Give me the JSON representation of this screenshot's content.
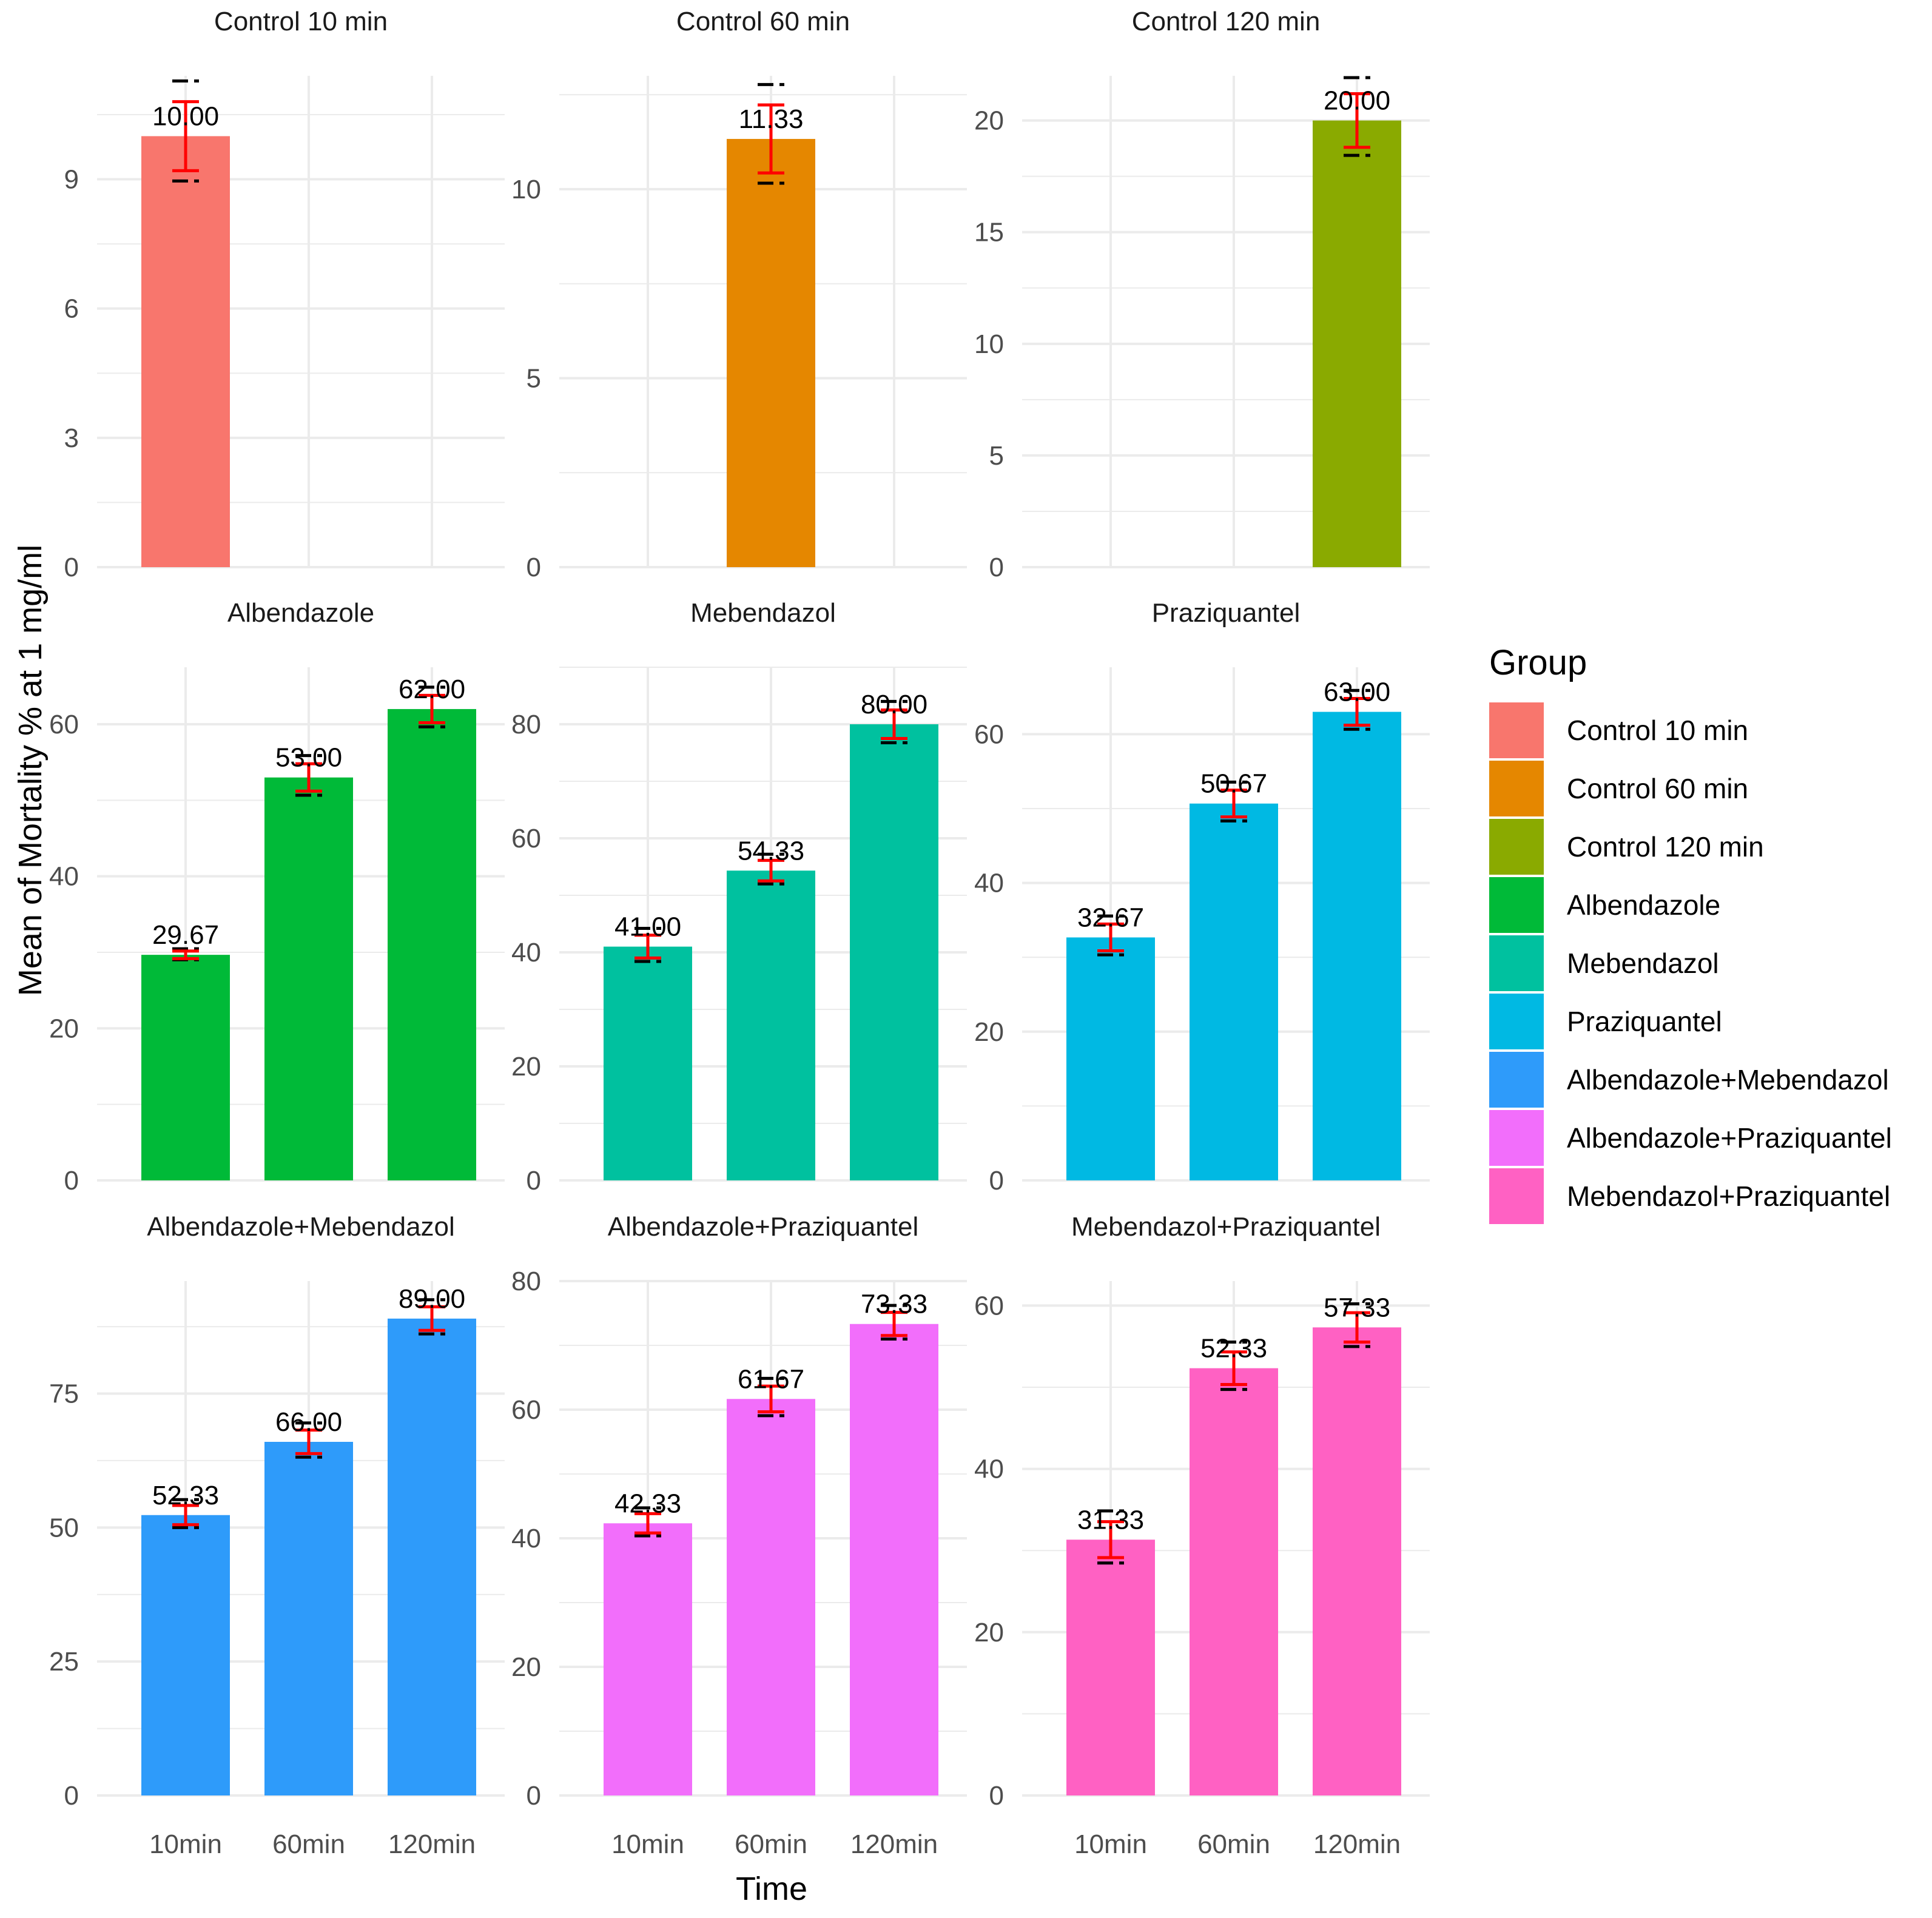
{
  "chart_data": {
    "type": "bar",
    "facet_layout": "3x3 grid, free y scales",
    "xlabel": "Time",
    "ylabel": "Mean of Mortality % at 1 mg/ml",
    "categories": [
      "10min",
      "60min",
      "120min"
    ],
    "legend": {
      "title": "Group",
      "placement": "right",
      "entries": [
        {
          "name": "Control 10 min",
          "color": "#F8766D"
        },
        {
          "name": "Control 60 min",
          "color": "#E58700"
        },
        {
          "name": "Control 120 min",
          "color": "#8AAA00"
        },
        {
          "name": "Albendazole",
          "color": "#00BA38"
        },
        {
          "name": "Mebendazol",
          "color": "#00C19F"
        },
        {
          "name": "Praziquantel",
          "color": "#00B9E3"
        },
        {
          "name": "Albendazole+Mebendazol",
          "color": "#2E9BFA"
        },
        {
          "name": "Albendazole+Praziquantel",
          "color": "#F26EFB"
        },
        {
          "name": "Mebendazol+Praziquantel",
          "color": "#FF61C3"
        }
      ]
    },
    "panels": [
      {
        "title": "Control 10 min",
        "color": "#F8766D",
        "ylim": [
          0,
          11.4
        ],
        "yticks": [
          0,
          3,
          6,
          9
        ],
        "bars": [
          {
            "category": "10min",
            "value": 10.0,
            "label": "10.00",
            "err": 0.8
          }
        ]
      },
      {
        "title": "Control 60 min",
        "color": "#E58700",
        "ylim": [
          0,
          13.0
        ],
        "yticks": [
          0,
          5,
          10
        ],
        "bars": [
          {
            "category": "60min",
            "value": 11.33,
            "label": "11.33",
            "err": 0.9
          }
        ]
      },
      {
        "title": "Control 120 min",
        "color": "#8AAA00",
        "ylim": [
          0,
          22.0
        ],
        "yticks": [
          0,
          5,
          10,
          15,
          20
        ],
        "bars": [
          {
            "category": "120min",
            "value": 20.0,
            "label": "20.00",
            "err": 1.2
          }
        ]
      },
      {
        "title": "Albendazole",
        "color": "#00BA38",
        "ylim": [
          0,
          67.5
        ],
        "yticks": [
          0,
          20,
          40,
          60
        ],
        "bars": [
          {
            "category": "10min",
            "value": 29.67,
            "label": "29.67",
            "err": 0.5
          },
          {
            "category": "60min",
            "value": 53.0,
            "label": "53.00",
            "err": 1.8
          },
          {
            "category": "120min",
            "value": 62.0,
            "label": "62.00",
            "err": 1.8
          }
        ]
      },
      {
        "title": "Mebendazol",
        "color": "#00C19F",
        "ylim": [
          0,
          90.0
        ],
        "yticks": [
          0,
          20,
          40,
          60,
          80
        ],
        "bars": [
          {
            "category": "10min",
            "value": 41.0,
            "label": "41.00",
            "err": 2.0
          },
          {
            "category": "60min",
            "value": 54.33,
            "label": "54.33",
            "err": 1.8
          },
          {
            "category": "120min",
            "value": 80.0,
            "label": "80.00",
            "err": 2.5
          }
        ]
      },
      {
        "title": "Praziquantel",
        "color": "#00B9E3",
        "ylim": [
          0,
          69.0
        ],
        "yticks": [
          0,
          20,
          40,
          60
        ],
        "bars": [
          {
            "category": "10min",
            "value": 32.67,
            "label": "32.67",
            "err": 1.8
          },
          {
            "category": "60min",
            "value": 50.67,
            "label": "50.67",
            "err": 1.8
          },
          {
            "category": "120min",
            "value": 63.0,
            "label": "63.00",
            "err": 1.8
          }
        ]
      },
      {
        "title": "Albendazole+Mebendazol",
        "color": "#2E9BFA",
        "ylim": [
          0,
          96.0
        ],
        "yticks": [
          0,
          25,
          50,
          75
        ],
        "bars": [
          {
            "category": "10min",
            "value": 52.33,
            "label": "52.33",
            "err": 1.8
          },
          {
            "category": "60min",
            "value": 66.0,
            "label": "66.00",
            "err": 2.2
          },
          {
            "category": "120min",
            "value": 89.0,
            "label": "89.00",
            "err": 2.2
          }
        ]
      },
      {
        "title": "Albendazole+Praziquantel",
        "color": "#F26EFB",
        "ylim": [
          0,
          80.0
        ],
        "yticks": [
          0,
          20,
          40,
          60,
          80
        ],
        "bars": [
          {
            "category": "10min",
            "value": 42.33,
            "label": "42.33",
            "err": 1.5
          },
          {
            "category": "60min",
            "value": 61.67,
            "label": "61.67",
            "err": 2.0
          },
          {
            "category": "120min",
            "value": 73.33,
            "label": "73.33",
            "err": 1.8
          }
        ]
      },
      {
        "title": "Mebendazol+Praziquantel",
        "color": "#FF61C3",
        "ylim": [
          0,
          63.0
        ],
        "yticks": [
          0,
          20,
          40,
          60
        ],
        "bars": [
          {
            "category": "10min",
            "value": 31.33,
            "label": "31.33",
            "err": 2.2
          },
          {
            "category": "60min",
            "value": 52.33,
            "label": "52.33",
            "err": 2.0
          },
          {
            "category": "120min",
            "value": 57.33,
            "label": "57.33",
            "err": 1.8
          }
        ]
      }
    ],
    "error_bar_color": "#FF0000",
    "grid": true
  }
}
